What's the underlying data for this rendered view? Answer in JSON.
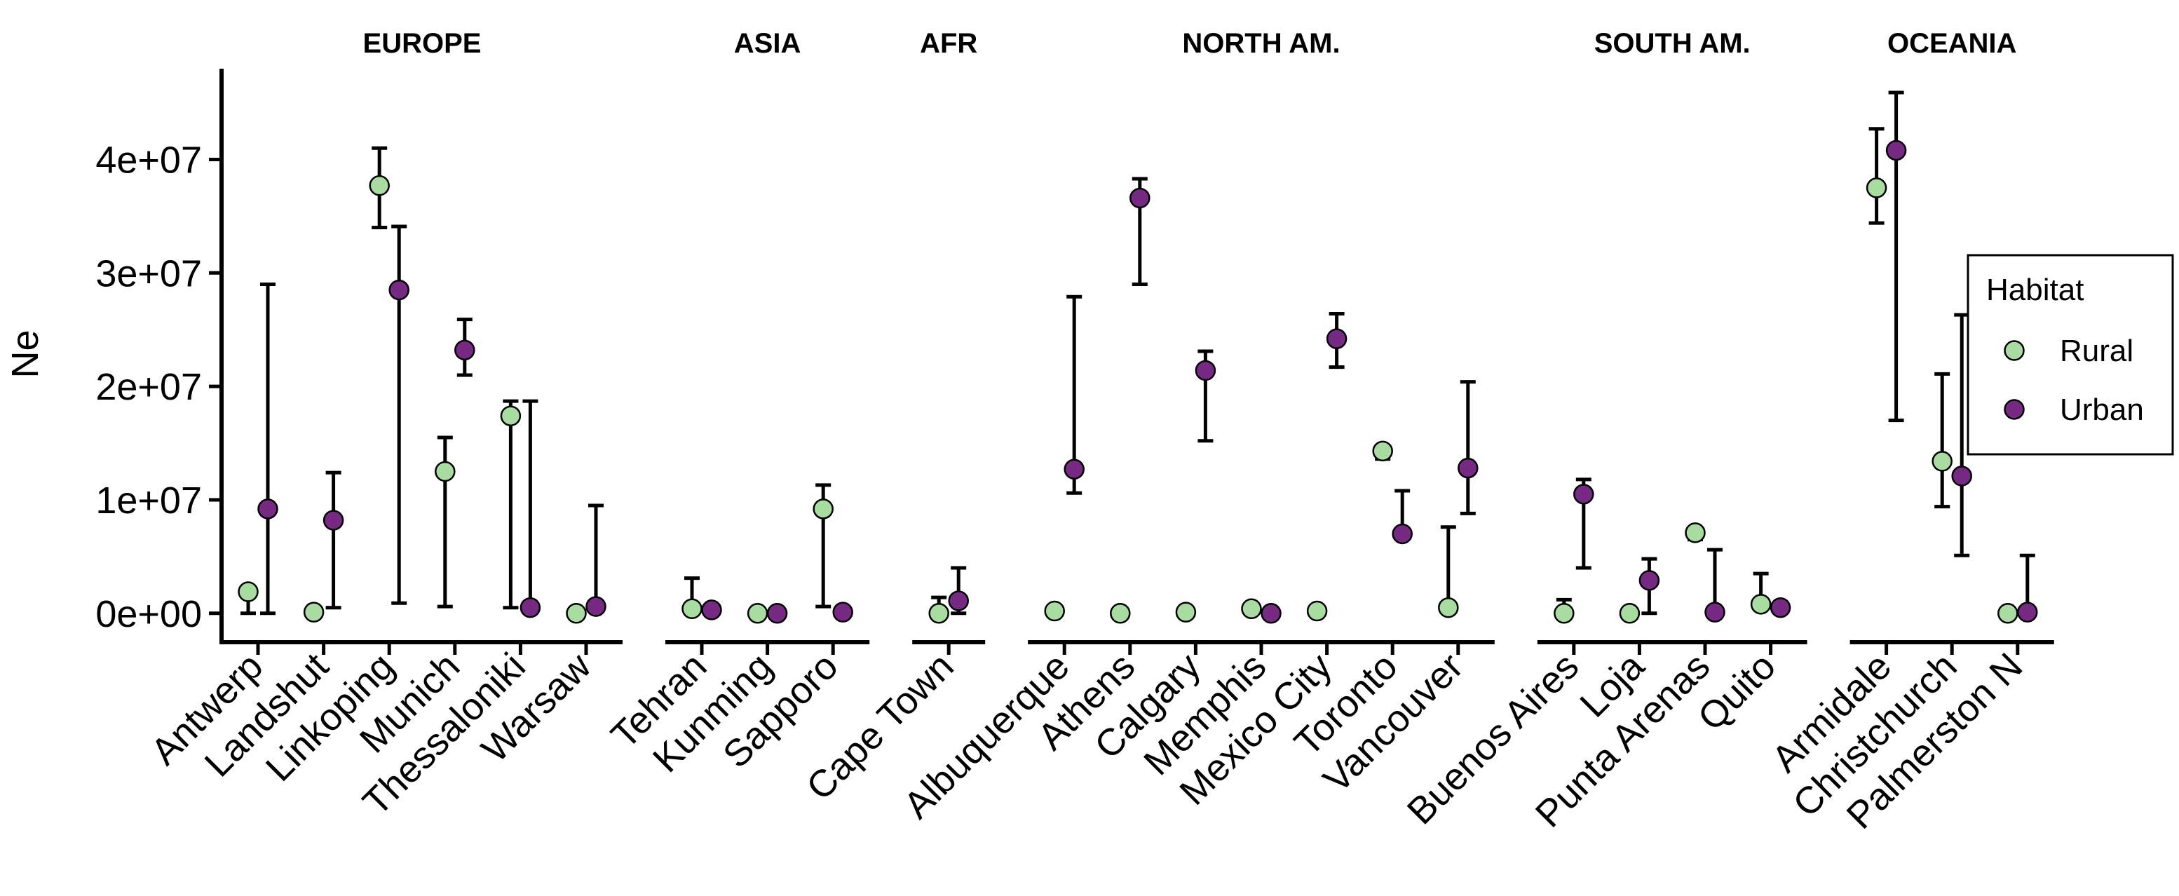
{
  "chart_data": {
    "type": "scatter",
    "ylabel": "Ne",
    "xlabel": "",
    "ylim": [
      -2300000,
      48000000
    ],
    "yticks": [
      0,
      10000000,
      20000000,
      30000000,
      40000000
    ],
    "ytick_labels": [
      "0e+00",
      "1e+07",
      "2e+07",
      "3e+07",
      "4e+07"
    ],
    "legend": {
      "title": "Habitat",
      "placement": "right",
      "entries": [
        {
          "name": "Rural",
          "color": "#a8dca0"
        },
        {
          "name": "Urban",
          "color": "#762a83"
        }
      ]
    },
    "facets": [
      {
        "title": "EUROPE",
        "cities": [
          {
            "name": "Antwerp",
            "rural": {
              "y": 1900000,
              "lo": 0,
              "hi": 1900000
            },
            "urban": {
              "y": 9200000,
              "lo": 0,
              "hi": 29000000
            }
          },
          {
            "name": "Landshut",
            "rural": {
              "y": 100000,
              "lo": 100000,
              "hi": 100000
            },
            "urban": {
              "y": 8200000,
              "lo": 500000,
              "hi": 12400000
            }
          },
          {
            "name": "Linkoping",
            "rural": {
              "y": 37700000,
              "lo": 34000000,
              "hi": 41000000
            },
            "urban": {
              "y": 28500000,
              "lo": 900000,
              "hi": 34100000
            }
          },
          {
            "name": "Munich",
            "rural": {
              "y": 12500000,
              "lo": 600000,
              "hi": 15500000
            },
            "urban": {
              "y": 23200000,
              "lo": 21000000,
              "hi": 25900000
            }
          },
          {
            "name": "Thessaloniki",
            "rural": {
              "y": 17400000,
              "lo": 500000,
              "hi": 18700000
            },
            "urban": {
              "y": 500000,
              "lo": 500000,
              "hi": 18700000
            }
          },
          {
            "name": "Warsaw",
            "rural": {
              "y": 0,
              "lo": 0,
              "hi": 0
            },
            "urban": {
              "y": 600000,
              "lo": 600000,
              "hi": 9500000
            }
          }
        ]
      },
      {
        "title": "ASIA",
        "cities": [
          {
            "name": "Tehran",
            "rural": {
              "y": 400000,
              "lo": 400000,
              "hi": 3100000
            },
            "urban": {
              "y": 300000,
              "lo": 300000,
              "hi": 300000
            }
          },
          {
            "name": "Kunming",
            "rural": {
              "y": 0,
              "lo": 0,
              "hi": 0
            },
            "urban": {
              "y": 0,
              "lo": 0,
              "hi": 0
            }
          },
          {
            "name": "Sapporo",
            "rural": {
              "y": 9200000,
              "lo": 600000,
              "hi": 11300000
            },
            "urban": {
              "y": 100000,
              "lo": 100000,
              "hi": 100000
            }
          }
        ]
      },
      {
        "title": "AFR",
        "cities": [
          {
            "name": "Cape Town",
            "rural": {
              "y": 0,
              "lo": 0,
              "hi": 1400000
            },
            "urban": {
              "y": 1100000,
              "lo": 0,
              "hi": 4000000
            }
          }
        ]
      },
      {
        "title": "NORTH AM.",
        "cities": [
          {
            "name": "Albuquerque",
            "rural": {
              "y": 200000,
              "lo": 200000,
              "hi": 200000
            },
            "urban": {
              "y": 12700000,
              "lo": 10600000,
              "hi": 27900000
            }
          },
          {
            "name": "Athens",
            "rural": {
              "y": 0,
              "lo": 0,
              "hi": 0
            },
            "urban": {
              "y": 36600000,
              "lo": 29000000,
              "hi": 38300000
            }
          },
          {
            "name": "Calgary",
            "rural": {
              "y": 100000,
              "lo": 100000,
              "hi": 100000
            },
            "urban": {
              "y": 21400000,
              "lo": 15200000,
              "hi": 23100000
            }
          },
          {
            "name": "Memphis",
            "rural": {
              "y": 400000,
              "lo": 400000,
              "hi": 400000
            },
            "urban": {
              "y": 0,
              "lo": 0,
              "hi": 0
            }
          },
          {
            "name": "Mexico City",
            "rural": {
              "y": 200000,
              "lo": 200000,
              "hi": 200000
            },
            "urban": {
              "y": 24200000,
              "lo": 21700000,
              "hi": 26400000
            }
          },
          {
            "name": "Toronto",
            "rural": {
              "y": 14300000,
              "lo": 13600000,
              "hi": 14300000
            },
            "urban": {
              "y": 7000000,
              "lo": 7000000,
              "hi": 10800000
            }
          },
          {
            "name": "Vancouver",
            "rural": {
              "y": 500000,
              "lo": 500000,
              "hi": 7600000
            },
            "urban": {
              "y": 12800000,
              "lo": 8800000,
              "hi": 20400000
            }
          }
        ]
      },
      {
        "title": "SOUTH AM.",
        "cities": [
          {
            "name": "Buenos Aires",
            "rural": {
              "y": 0,
              "lo": 0,
              "hi": 1200000
            },
            "urban": {
              "y": 10500000,
              "lo": 4000000,
              "hi": 11800000
            }
          },
          {
            "name": "Loja",
            "rural": {
              "y": 0,
              "lo": 0,
              "hi": 0
            },
            "urban": {
              "y": 2900000,
              "lo": 0,
              "hi": 4800000
            }
          },
          {
            "name": "Punta Arenas",
            "rural": {
              "y": 7100000,
              "lo": 6500000,
              "hi": 7500000
            },
            "urban": {
              "y": 100000,
              "lo": 100000,
              "hi": 5600000
            }
          },
          {
            "name": "Quito",
            "rural": {
              "y": 800000,
              "lo": 800000,
              "hi": 3500000
            },
            "urban": {
              "y": 500000,
              "lo": 500000,
              "hi": 500000
            }
          }
        ]
      },
      {
        "title": "OCEANIA",
        "cities": [
          {
            "name": "Armidale",
            "rural": {
              "y": 37500000,
              "lo": 34400000,
              "hi": 42700000
            },
            "urban": {
              "y": 40800000,
              "lo": 17000000,
              "hi": 45900000
            }
          },
          {
            "name": "Christchurch",
            "rural": {
              "y": 13400000,
              "lo": 9400000,
              "hi": 21100000
            },
            "urban": {
              "y": 12100000,
              "lo": 5100000,
              "hi": 26300000
            }
          },
          {
            "name": "Palmerston N",
            "rural": {
              "y": 0,
              "lo": 0,
              "hi": 0
            },
            "urban": {
              "y": 100000,
              "lo": 100000,
              "hi": 5100000
            }
          }
        ]
      }
    ]
  }
}
